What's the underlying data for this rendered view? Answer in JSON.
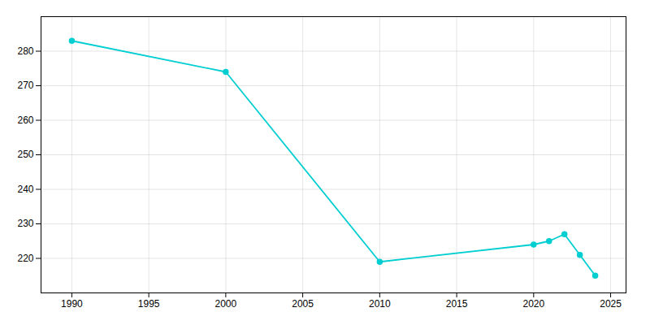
{
  "chart_data": {
    "type": "line",
    "x": [
      1990,
      2000,
      2010,
      2020,
      2021,
      2022,
      2023,
      2024
    ],
    "values": [
      283,
      274,
      219,
      224,
      225,
      227,
      221,
      215
    ],
    "color": "#00CED1",
    "marker": "circle",
    "xlim": [
      1988,
      2026
    ],
    "xticks": [
      1990,
      1995,
      2000,
      2005,
      2010,
      2015,
      2020,
      2025
    ],
    "ylim": [
      210,
      290
    ],
    "yticks": [
      220,
      230,
      240,
      250,
      260,
      270,
      280
    ],
    "grid": true
  }
}
